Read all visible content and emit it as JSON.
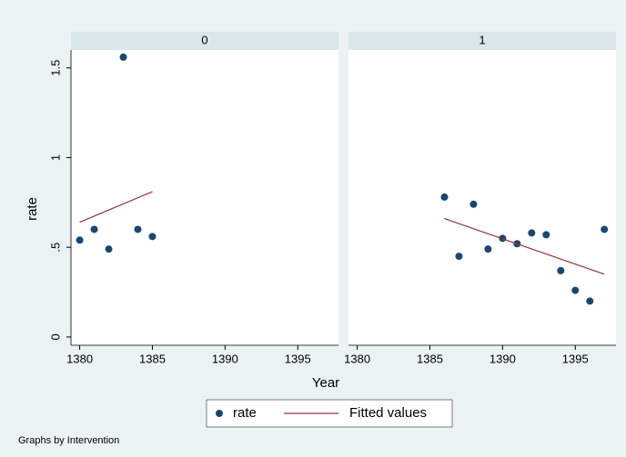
{
  "chart_data": [
    {
      "type": "scatter",
      "title": "0",
      "series": [
        {
          "name": "rate",
          "color": "#1a476f",
          "style": "marker",
          "x": [
            1380,
            1381,
            1382,
            1383,
            1384,
            1385
          ],
          "values": [
            0.54,
            0.6,
            0.49,
            1.56,
            0.6,
            0.56
          ]
        },
        {
          "name": "Fitted values",
          "color": "#90353b",
          "style": "line",
          "x": [
            1380,
            1385
          ],
          "values": [
            0.64,
            0.81
          ]
        }
      ],
      "xlim": [
        1379.4,
        1397.8
      ],
      "xticks": [
        1380,
        1385,
        1390,
        1395
      ],
      "ylim": [
        -0.046,
        1.6
      ],
      "yticks": [
        0,
        {
          "value": 0.5,
          "label": ".5"
        },
        1,
        1.5
      ]
    },
    {
      "type": "scatter",
      "title": "1",
      "series": [
        {
          "color": "#1a476f",
          "style": "marker",
          "x": [
            1386,
            1387,
            1388,
            1389,
            1390,
            1391,
            1392,
            1393,
            1394,
            1395,
            1396,
            1397
          ],
          "values": [
            0.78,
            0.45,
            0.74,
            0.49,
            0.55,
            0.52,
            0.58,
            0.57,
            0.37,
            0.26,
            0.2,
            0.6
          ]
        },
        {
          "color": "#90353b",
          "style": "line",
          "x": [
            1386,
            1397
          ],
          "values": [
            0.66,
            0.35
          ]
        }
      ],
      "xlim": [
        1379.4,
        1397.8
      ],
      "xticks": [
        1380,
        1385,
        1390,
        1395
      ],
      "ylim": [
        -0.046,
        1.6
      ]
    }
  ],
  "xlabel": "Year",
  "ylabel": "rate",
  "note": "Graphs by Intervention"
}
